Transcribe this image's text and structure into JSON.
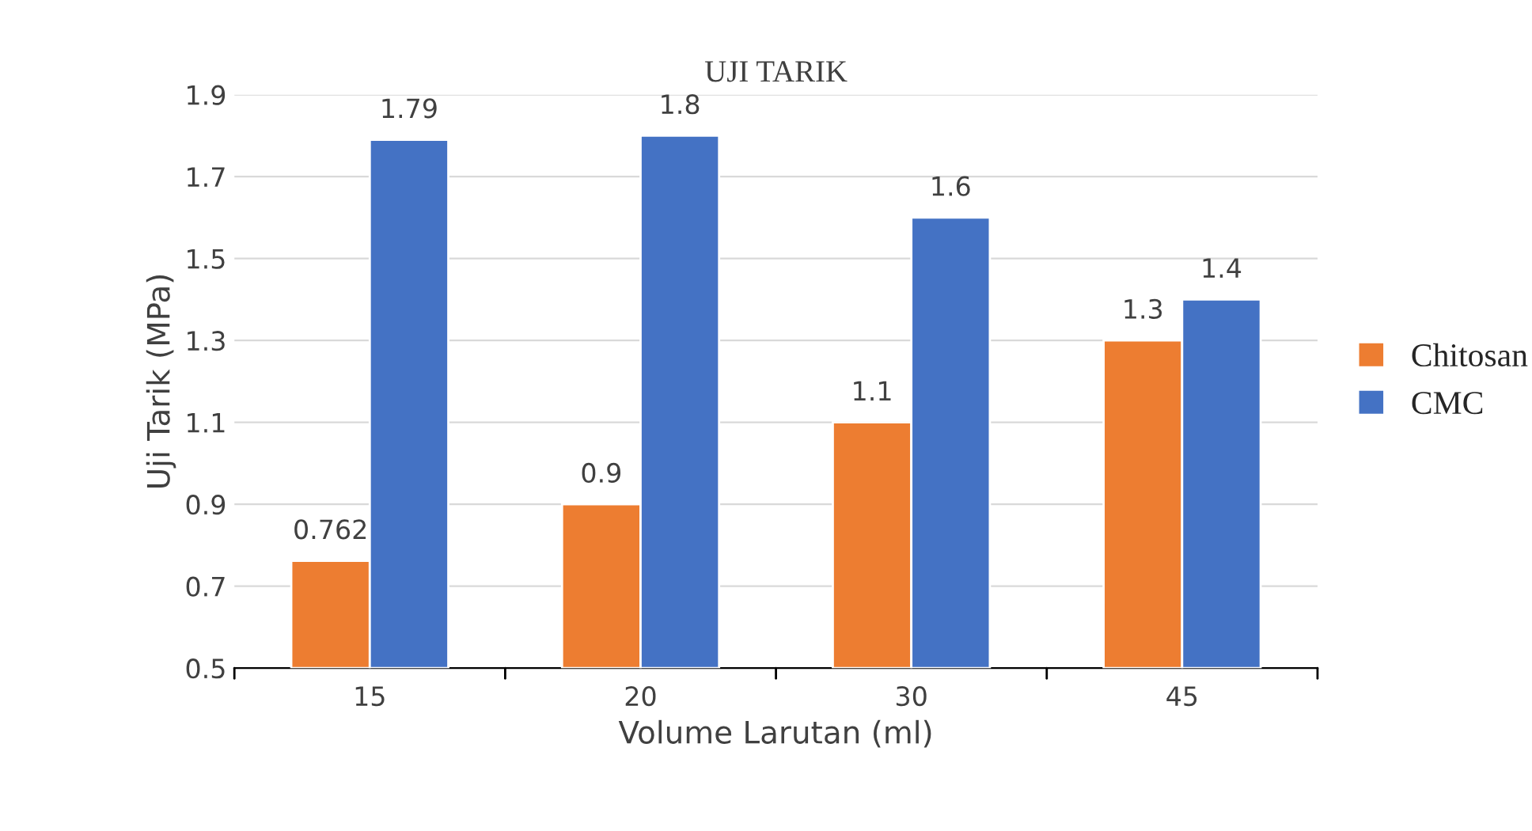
{
  "chart_data": {
    "type": "bar",
    "title": "UJI TARIK",
    "xlabel": "Volume Larutan (ml)",
    "ylabel": "Uji Tarik (MPa)",
    "categories": [
      "15",
      "20",
      "30",
      "45"
    ],
    "series": [
      {
        "name": "Chitosan",
        "color": "#ed7d31",
        "values": [
          0.762,
          0.9,
          1.1,
          1.3
        ]
      },
      {
        "name": "CMC",
        "color": "#4472c4",
        "values": [
          1.79,
          1.8,
          1.6,
          1.4
        ]
      }
    ],
    "ylim": [
      0.5,
      1.9
    ],
    "yticks": [
      0.5,
      0.7,
      0.9,
      1.1,
      1.3,
      1.5,
      1.7,
      1.9
    ],
    "grid": "y",
    "legend": "right",
    "data_labels": true
  }
}
